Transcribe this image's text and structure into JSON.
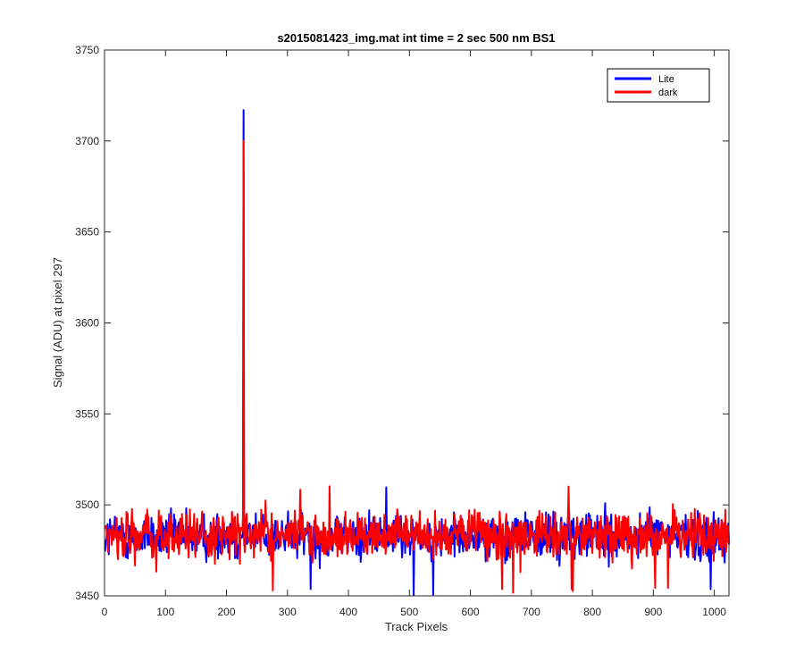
{
  "chart_data": {
    "type": "line",
    "title": "s2015081423_img.mat int time = 2 sec  500 nm BS1",
    "xlabel": "Track Pixels",
    "ylabel": "Signal (ADU) at pixel 297",
    "xlim": [
      0,
      1024
    ],
    "ylim": [
      3450,
      3750
    ],
    "xticks": [
      "0",
      "100",
      "200",
      "300",
      "400",
      "500",
      "600",
      "700",
      "800",
      "900",
      "1000"
    ],
    "yticks": [
      "3450",
      "3500",
      "3550",
      "3600",
      "3650",
      "3700",
      "3750"
    ],
    "grid": false,
    "legend_position": "top-right",
    "series": [
      {
        "name": "Lite",
        "color": "#0000ff",
        "n_points": 1024,
        "baseline": 3483,
        "noise_range": [
          3450,
          3511
        ],
        "spike": {
          "x": 228,
          "y": 3717
        }
      },
      {
        "name": "dark",
        "color": "#ff0000",
        "n_points": 1024,
        "baseline": 3483,
        "noise_range": [
          3451,
          3511
        ],
        "spike": {
          "x": 228,
          "y": 3700
        }
      }
    ]
  }
}
